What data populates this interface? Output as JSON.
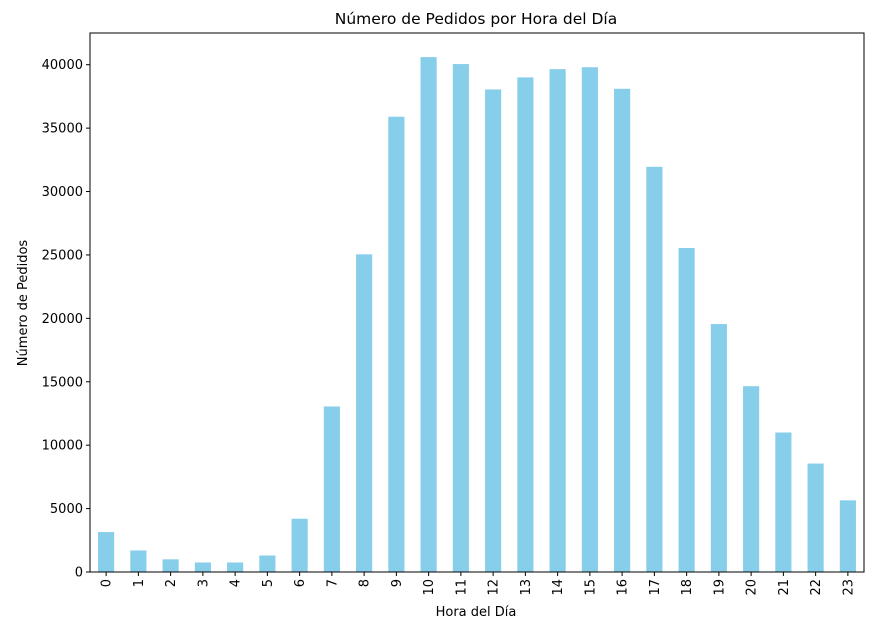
{
  "chart_data": {
    "type": "bar",
    "title": "Número de Pedidos por Hora del Día",
    "xlabel": "Hora del Día",
    "ylabel": "Número de Pedidos",
    "categories": [
      "0",
      "1",
      "2",
      "3",
      "4",
      "5",
      "6",
      "7",
      "8",
      "9",
      "10",
      "11",
      "12",
      "13",
      "14",
      "15",
      "16",
      "17",
      "18",
      "19",
      "20",
      "21",
      "22",
      "23"
    ],
    "values": [
      3150,
      1700,
      1000,
      750,
      750,
      1300,
      4200,
      13050,
      25050,
      35900,
      40600,
      40050,
      38050,
      39000,
      39650,
      39800,
      38100,
      31950,
      25550,
      19550,
      14650,
      11000,
      8550,
      5650
    ],
    "ylim": [
      0,
      42500
    ],
    "yticks": [
      "0",
      "5000",
      "10000",
      "15000",
      "20000",
      "25000",
      "30000",
      "35000",
      "40000"
    ],
    "grid": false,
    "legend": "none",
    "bar_color": "#87ceeb",
    "xtick_rotation": "vertical"
  }
}
